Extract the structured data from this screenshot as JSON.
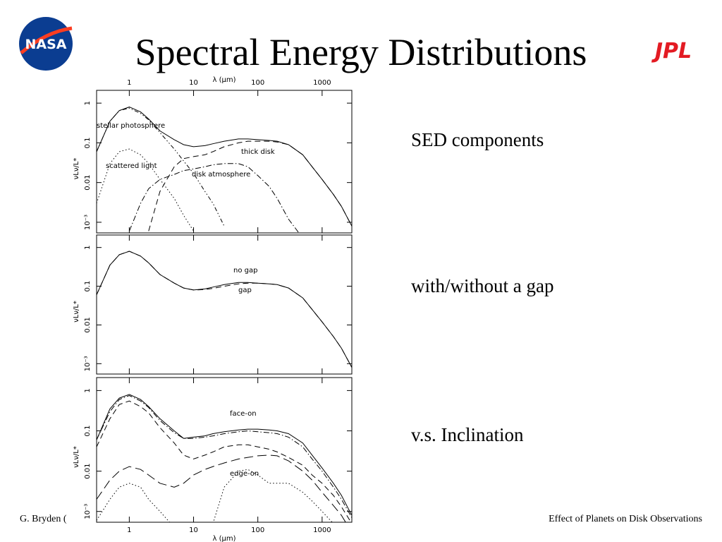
{
  "title": "Spectral Energy Distributions",
  "logo_left": "NASA",
  "logo_right": "JPL",
  "captions": [
    "SED components",
    "with/without a gap",
    "v.s. Inclination"
  ],
  "footer_left": "G. Bryden (",
  "footer_right": "Effect of Planets on Disk Observations",
  "chart_data": [
    {
      "type": "line",
      "xlabel": "λ (μm)",
      "ylabel": "νLν/L*",
      "xtick_labels": "top",
      "xscale": "log",
      "yscale": "log",
      "x": [
        0.31,
        0.5,
        0.7,
        1,
        1.5,
        2,
        3,
        5,
        7,
        10,
        15,
        20,
        30,
        50,
        70,
        100,
        150,
        200,
        300,
        500,
        700,
        1000,
        1500,
        2000,
        2900
      ],
      "xlim": [
        0.31,
        2900
      ],
      "xticks": [
        1,
        10,
        100,
        1000
      ],
      "ylim": [
        0.00054,
        2.1
      ],
      "yticks": [
        1,
        0.1,
        0.01,
        {
          "value": 0.001,
          "label": "10⁻³"
        }
      ],
      "series": [
        {
          "style": "solid",
          "color": "#000",
          "values": [
            0.06,
            0.35,
            0.65,
            0.8,
            0.6,
            0.4,
            0.2,
            0.12,
            0.09,
            0.08,
            0.085,
            0.095,
            0.11,
            0.125,
            0.125,
            0.12,
            0.115,
            0.11,
            0.09,
            0.05,
            0.025,
            0.012,
            0.005,
            0.0025,
            0.0008
          ]
        },
        {
          "name": "stellar photosphere",
          "style": "dashdotdot",
          "color": "#000",
          "values": [
            0.06,
            0.35,
            0.65,
            0.75,
            0.55,
            0.38,
            0.18,
            0.07,
            0.035,
            0.017,
            0.006,
            0.003,
            0.0008,
            null,
            null,
            null,
            null,
            null,
            null,
            null,
            null,
            null,
            null,
            null,
            null
          ]
        },
        {
          "name": "scattered light",
          "style": "dot",
          "color": "#000",
          "values": [
            0.003,
            0.03,
            0.06,
            0.07,
            0.05,
            0.03,
            0.012,
            0.004,
            0.0015,
            0.0006,
            null,
            null,
            null,
            null,
            null,
            null,
            null,
            null,
            null,
            null,
            null,
            null,
            null,
            null,
            null
          ]
        },
        {
          "name": "thick disk",
          "style": "dash",
          "color": "#000",
          "values": [
            null,
            null,
            null,
            null,
            null,
            0.0006,
            0.006,
            0.025,
            0.04,
            0.045,
            0.05,
            0.06,
            0.08,
            0.1,
            0.11,
            0.11,
            0.11,
            0.105,
            0.09,
            0.05,
            0.025,
            0.012,
            0.005,
            0.0025,
            0.0008
          ]
        },
        {
          "name": "disk atmosphere",
          "style": "dashdot",
          "color": "#000",
          "values": [
            null,
            null,
            null,
            0.0006,
            0.003,
            0.007,
            0.012,
            0.016,
            0.02,
            0.022,
            0.025,
            0.028,
            0.03,
            0.03,
            0.025,
            0.015,
            0.008,
            0.004,
            0.0012,
            0.0004,
            null,
            null,
            null,
            null,
            null
          ]
        }
      ]
    },
    {
      "type": "line",
      "ylabel": "νLν/L*",
      "xtick_labels": "none",
      "xscale": "log",
      "yscale": "log",
      "x": [
        0.31,
        0.5,
        0.7,
        1,
        1.5,
        2,
        3,
        5,
        7,
        10,
        15,
        20,
        30,
        50,
        70,
        100,
        150,
        200,
        300,
        500,
        700,
        1000,
        1500,
        2000,
        2900
      ],
      "xlim": [
        0.31,
        2900
      ],
      "xticks": [
        1,
        10,
        100,
        1000
      ],
      "ylim": [
        0.00054,
        2.1
      ],
      "yticks": [
        1,
        0.1,
        0.01,
        {
          "value": 0.001,
          "label": "10⁻³"
        }
      ],
      "series": [
        {
          "name": "no gap",
          "style": "solid",
          "color": "#000",
          "values": [
            0.06,
            0.35,
            0.65,
            0.8,
            0.6,
            0.4,
            0.2,
            0.12,
            0.09,
            0.08,
            0.085,
            0.095,
            0.11,
            0.125,
            0.125,
            0.12,
            0.115,
            0.11,
            0.09,
            0.05,
            0.025,
            0.012,
            0.005,
            0.0025,
            0.0008
          ]
        },
        {
          "name": "gap",
          "style": "dash",
          "color": "#000",
          "values": [
            0.06,
            0.35,
            0.65,
            0.8,
            0.6,
            0.4,
            0.2,
            0.12,
            0.09,
            0.08,
            0.082,
            0.088,
            0.1,
            0.115,
            0.12,
            0.12,
            0.115,
            0.11,
            0.09,
            0.05,
            0.025,
            0.012,
            0.005,
            0.0025,
            0.0008
          ]
        }
      ]
    },
    {
      "type": "line",
      "xlabel": "λ (μm)",
      "ylabel": "νLν/L*",
      "xtick_labels": "bottom",
      "xscale": "log",
      "yscale": "log",
      "x": [
        0.31,
        0.5,
        0.7,
        1,
        1.5,
        2,
        3,
        5,
        7,
        10,
        15,
        20,
        30,
        50,
        70,
        100,
        150,
        200,
        300,
        500,
        700,
        1000,
        1500,
        2000,
        2900
      ],
      "xlim": [
        0.31,
        2900
      ],
      "xticks": [
        1,
        10,
        100,
        1000
      ],
      "ylim": [
        0.00054,
        2.1
      ],
      "yticks": [
        1,
        0.1,
        0.01,
        {
          "value": 0.001,
          "label": "10⁻³"
        }
      ],
      "series": [
        {
          "name": "face-on",
          "style": "solid",
          "color": "#000",
          "values": [
            0.06,
            0.35,
            0.65,
            0.8,
            0.6,
            0.4,
            0.2,
            0.1,
            0.065,
            0.07,
            0.075,
            0.085,
            0.095,
            0.105,
            0.11,
            0.11,
            0.105,
            0.1,
            0.085,
            0.05,
            0.025,
            0.012,
            0.005,
            0.0025,
            0.0008
          ]
        },
        {
          "style": "dashdot",
          "color": "#000",
          "values": [
            0.06,
            0.3,
            0.6,
            0.75,
            0.55,
            0.38,
            0.18,
            0.09,
            0.065,
            0.065,
            0.07,
            0.075,
            0.085,
            0.095,
            0.1,
            0.095,
            0.09,
            0.085,
            0.07,
            0.04,
            0.02,
            0.01,
            0.004,
            0.002,
            0.0007
          ]
        },
        {
          "style": "dash",
          "color": "#000",
          "values": [
            0.04,
            0.2,
            0.45,
            0.55,
            0.4,
            0.28,
            0.12,
            0.05,
            0.025,
            0.02,
            0.025,
            0.03,
            0.04,
            0.045,
            0.045,
            0.04,
            0.035,
            0.03,
            0.022,
            0.014,
            0.008,
            0.005,
            0.0025,
            0.0013,
            0.0005
          ]
        },
        {
          "style": "longdash",
          "color": "#000",
          "values": [
            0.002,
            0.006,
            0.01,
            0.013,
            0.011,
            0.008,
            0.005,
            0.004,
            0.005,
            0.008,
            0.011,
            0.013,
            0.016,
            0.02,
            0.022,
            0.024,
            0.025,
            0.024,
            0.018,
            0.01,
            0.006,
            0.003,
            0.0014,
            0.0008,
            0.0003
          ]
        },
        {
          "name": "edge-on",
          "style": "dot",
          "color": "#000",
          "values": [
            0.0006,
            0.002,
            0.004,
            0.005,
            0.004,
            0.002,
            0.001,
            0.0004,
            null,
            null,
            null,
            0.0005,
            0.004,
            0.01,
            0.011,
            0.008,
            0.005,
            0.005,
            0.005,
            0.003,
            0.0018,
            0.001,
            0.0005,
            0.0003,
            null
          ]
        }
      ]
    }
  ]
}
